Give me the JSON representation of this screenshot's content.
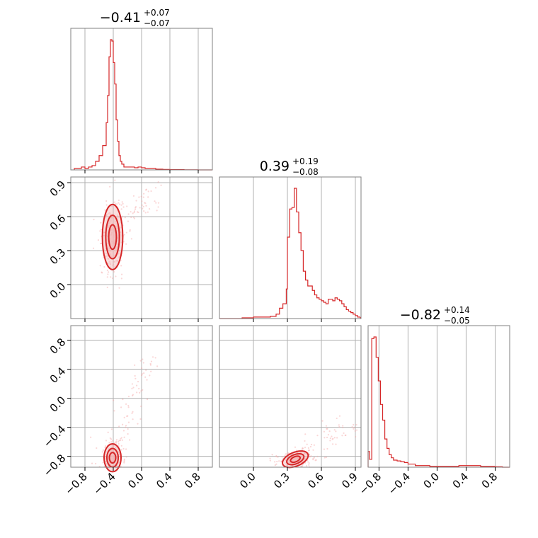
{
  "colors": {
    "accent": "#d62728",
    "accent_fill": "#f2b5b6",
    "scatter": "#f4a6a7",
    "grid": "#b0b0b0",
    "frame": "#808080"
  },
  "chart_data": {
    "type": "corner",
    "parameters": [
      {
        "median": "−0.41",
        "plus": "+0.07",
        "minus": "−0.07"
      },
      {
        "median": "0.39",
        "plus": "+0.19",
        "minus": "−0.08"
      },
      {
        "median": "−0.82",
        "plus": "+0.14",
        "minus": "−0.05"
      }
    ],
    "axes": [
      {
        "range": [
          -1.0,
          1.0
        ],
        "ticks": [
          -0.8,
          -0.4,
          0.0,
          0.4,
          0.8
        ],
        "tick_labels": [
          "−0.8",
          "−0.4",
          "0.0",
          "0.4",
          "0.8"
        ]
      },
      {
        "range": [
          -0.3,
          0.95
        ],
        "ticks": [
          0.0,
          0.3,
          0.6,
          0.9
        ],
        "tick_labels": [
          "0.0",
          "0.3",
          "0.6",
          "0.9"
        ]
      },
      {
        "range": [
          -0.95,
          1.0
        ],
        "ticks": [
          -0.8,
          -0.4,
          0.0,
          0.4,
          0.8
        ],
        "tick_labels": [
          "−0.8",
          "−0.4",
          "0.0",
          "0.4",
          "0.8"
        ]
      }
    ],
    "grid": true,
    "histograms": [
      {
        "param": 0,
        "x": [
          -0.95,
          -0.9,
          -0.85,
          -0.8,
          -0.75,
          -0.7,
          -0.65,
          -0.6,
          -0.55,
          -0.5,
          -0.48,
          -0.46,
          -0.44,
          -0.42,
          -0.4,
          -0.38,
          -0.36,
          -0.34,
          -0.32,
          -0.3,
          -0.28,
          -0.25,
          -0.2,
          -0.15,
          -0.1,
          -0.05,
          0.0,
          0.05,
          0.1,
          0.15,
          0.2,
          0.3,
          0.4,
          0.6,
          0.8
        ],
        "counts": [
          0.01,
          0.01,
          0.02,
          0.01,
          0.02,
          0.03,
          0.06,
          0.1,
          0.17,
          0.33,
          0.52,
          0.79,
          0.91,
          0.9,
          0.75,
          0.6,
          0.35,
          0.2,
          0.1,
          0.06,
          0.04,
          0.02,
          0.02,
          0.02,
          0.015,
          0.02,
          0.015,
          0.01,
          0.01,
          0.01,
          0.005,
          0.003,
          0.002,
          0.001,
          0.0
        ]
      },
      {
        "param": 1,
        "x": [
          -0.3,
          -0.2,
          -0.1,
          0.0,
          0.1,
          0.15,
          0.2,
          0.23,
          0.26,
          0.29,
          0.3,
          0.32,
          0.34,
          0.36,
          0.38,
          0.4,
          0.42,
          0.44,
          0.46,
          0.48,
          0.5,
          0.52,
          0.54,
          0.56,
          0.58,
          0.6,
          0.62,
          0.64,
          0.66,
          0.68,
          0.7,
          0.72,
          0.74,
          0.76,
          0.78,
          0.8,
          0.82,
          0.84,
          0.86,
          0.88,
          0.9,
          0.92
        ],
        "counts": [
          0.0,
          0.0,
          0.005,
          0.01,
          0.01,
          0.015,
          0.03,
          0.07,
          0.1,
          0.2,
          0.55,
          0.74,
          0.75,
          0.88,
          0.72,
          0.58,
          0.46,
          0.32,
          0.26,
          0.22,
          0.22,
          0.19,
          0.16,
          0.14,
          0.13,
          0.12,
          0.11,
          0.1,
          0.13,
          0.13,
          0.12,
          0.14,
          0.13,
          0.12,
          0.1,
          0.08,
          0.06,
          0.05,
          0.04,
          0.03,
          0.02,
          0.01
        ]
      },
      {
        "param": 2,
        "x": [
          -0.95,
          -0.93,
          -0.9,
          -0.87,
          -0.84,
          -0.81,
          -0.78,
          -0.75,
          -0.72,
          -0.69,
          -0.66,
          -0.63,
          -0.6,
          -0.55,
          -0.5,
          -0.45,
          -0.4,
          -0.3,
          -0.2,
          -0.1,
          0.0,
          0.1,
          0.2,
          0.3,
          0.4,
          0.5,
          0.6,
          0.7,
          0.8,
          0.9
        ],
        "counts": [
          0.1,
          0.05,
          0.82,
          0.83,
          0.7,
          0.55,
          0.4,
          0.3,
          0.18,
          0.12,
          0.08,
          0.06,
          0.045,
          0.04,
          0.035,
          0.03,
          0.02,
          0.01,
          0.01,
          0.005,
          0.005,
          0.005,
          0.005,
          0.01,
          0.01,
          0.01,
          0.005,
          0.005,
          0.003,
          0.0
        ]
      }
    ],
    "scatter_panels": [
      {
        "x_param": 0,
        "y_param": 1,
        "center": [
          -0.41,
          0.42
        ],
        "spread": [
          0.06,
          0.12
        ],
        "tail_to": [
          0.2,
          0.85
        ]
      },
      {
        "x_param": 0,
        "y_param": 2,
        "center": [
          -0.41,
          -0.82
        ],
        "spread": [
          0.05,
          0.08
        ],
        "tail_to": [
          0.1,
          0.6
        ]
      },
      {
        "x_param": 1,
        "y_param": 2,
        "center": [
          0.37,
          -0.84
        ],
        "spread": [
          0.05,
          0.04
        ],
        "tail_to": [
          0.9,
          -0.3
        ]
      }
    ]
  }
}
